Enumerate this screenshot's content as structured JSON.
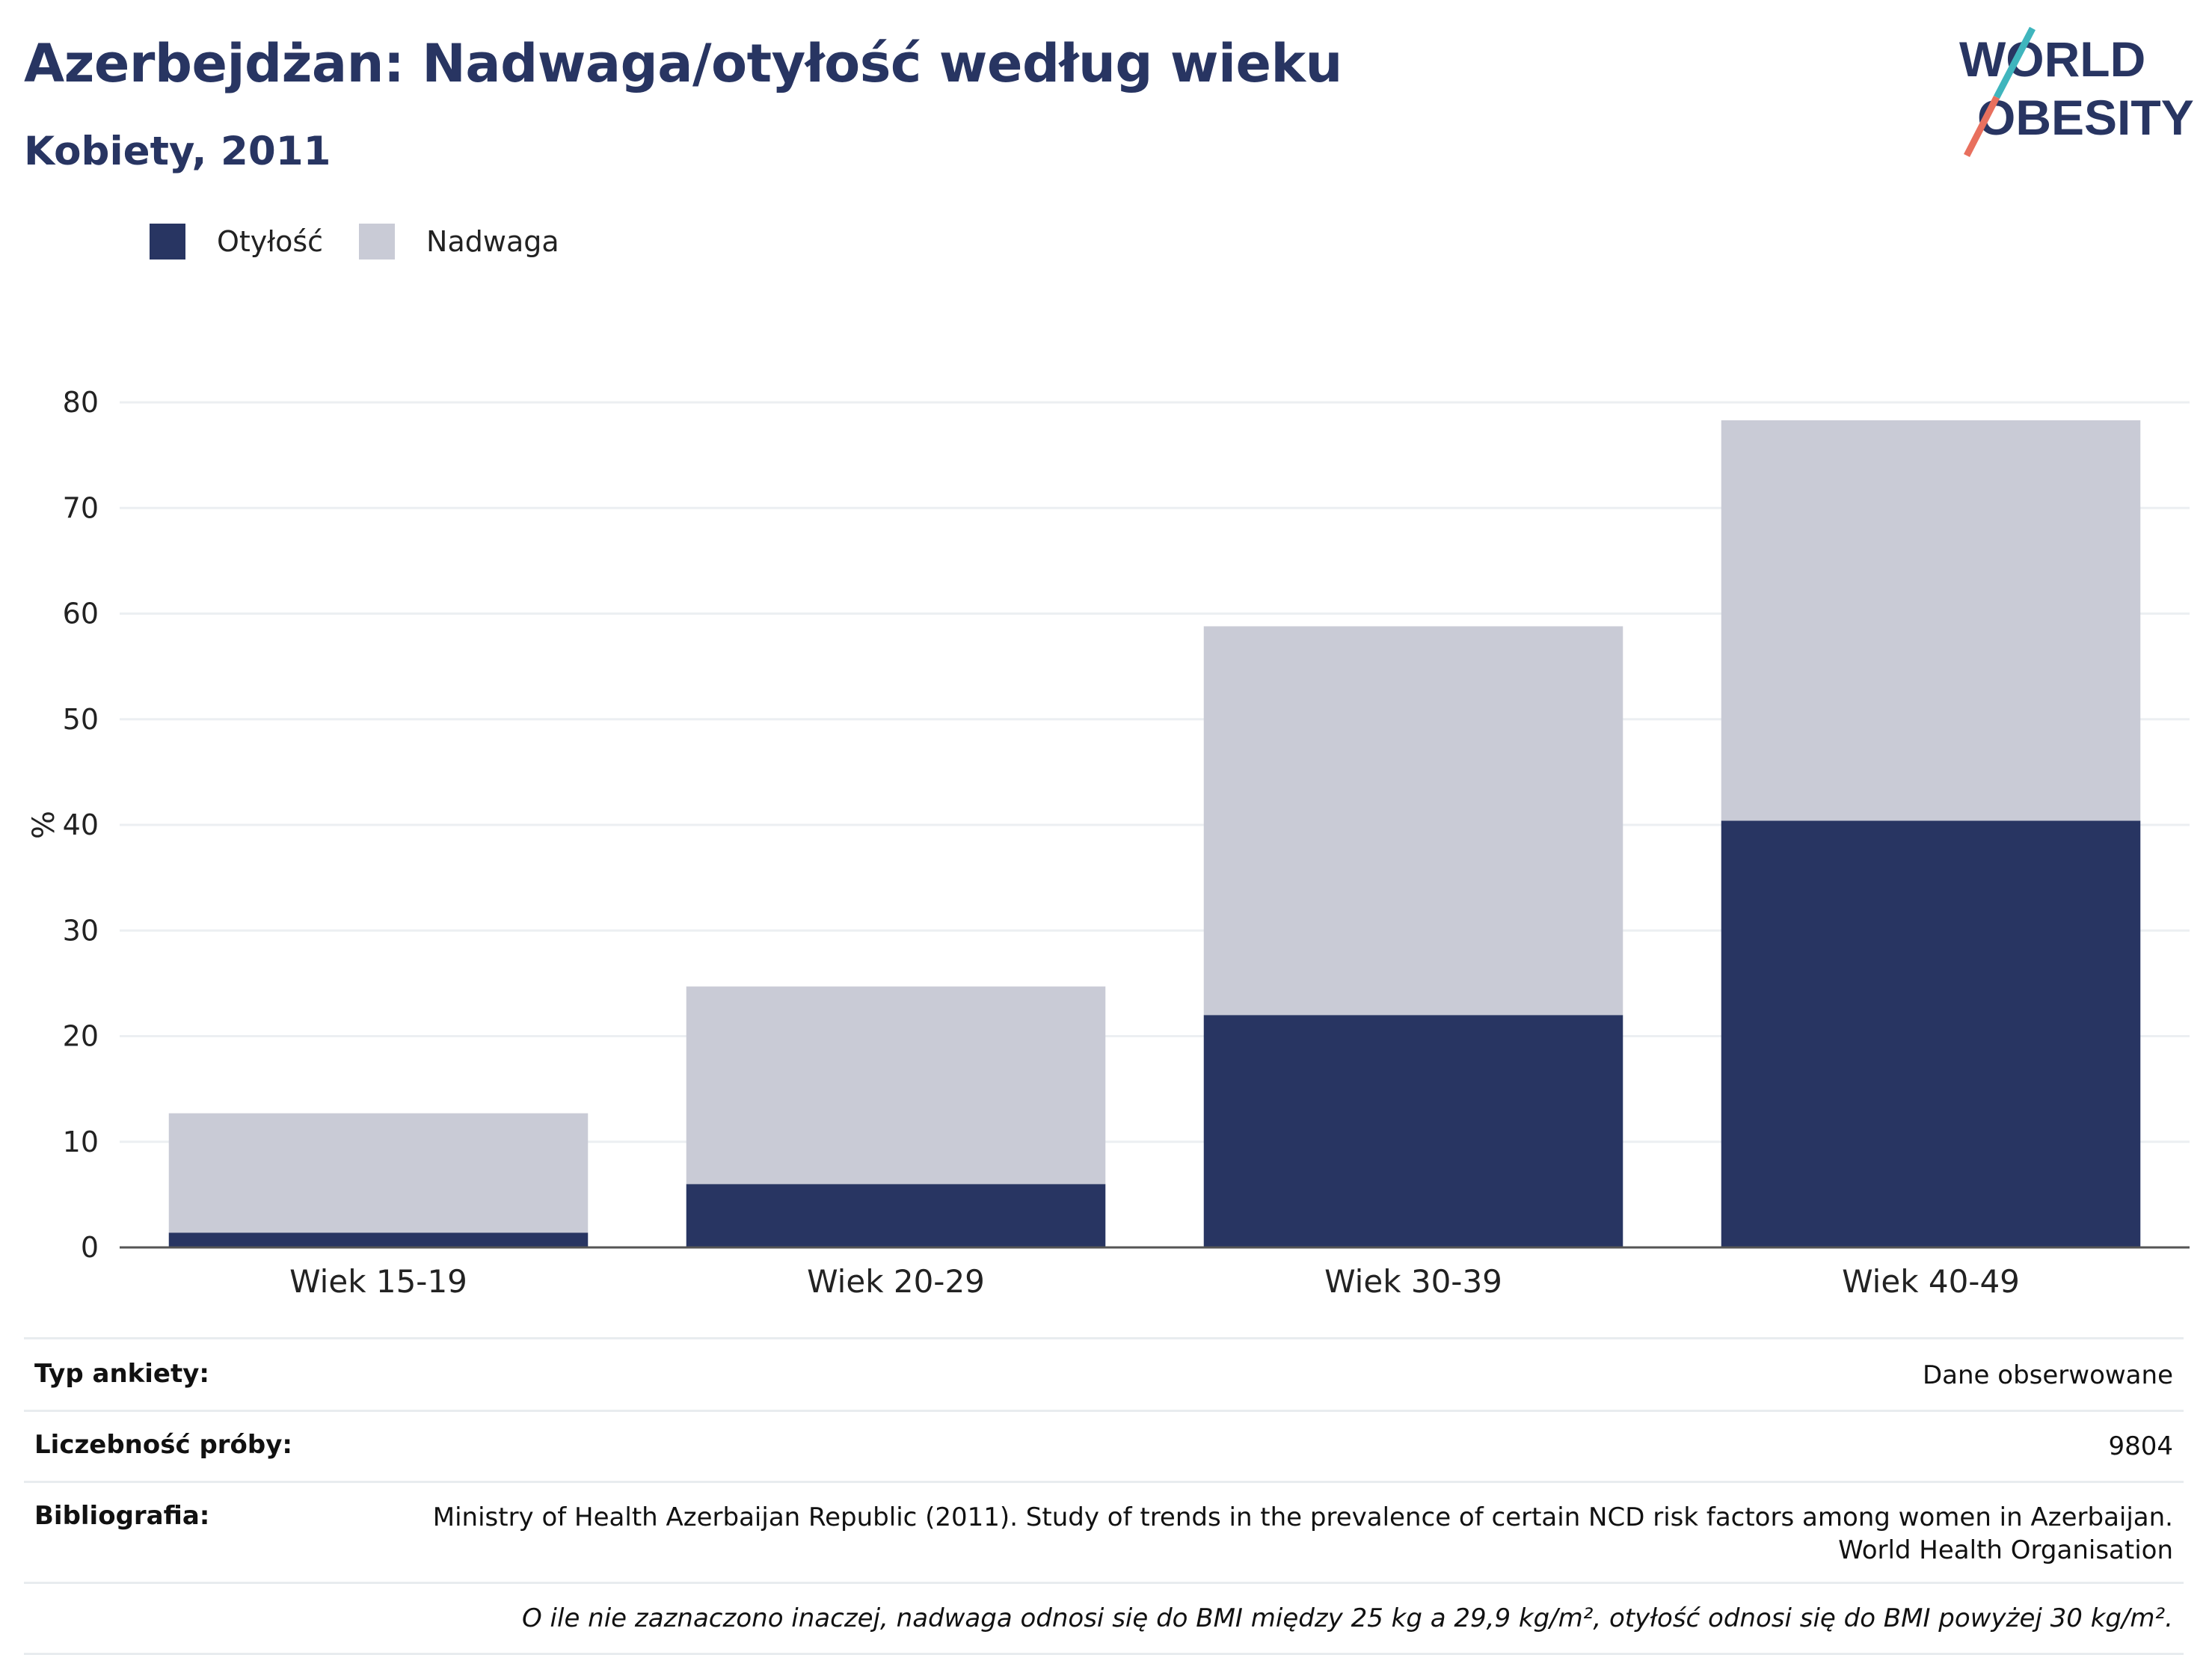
{
  "header": {
    "title": "Azerbejdżan: Nadwaga/otyłość według wieku",
    "subtitle": "Kobiety, 2011"
  },
  "logo": {
    "line1": "WORLD",
    "line2": "OBESITY",
    "colors": {
      "text": "#283562",
      "slash_top": "#3fb5bd",
      "slash_bottom": "#e8705e"
    }
  },
  "legend": [
    {
      "label": "Otyłość",
      "color": "#283562"
    },
    {
      "label": "Nadwaga",
      "color": "#c9cbd6"
    }
  ],
  "chart_data": {
    "type": "bar",
    "stacked": true,
    "categories": [
      "Wiek 15-19",
      "Wiek 20-29",
      "Wiek 30-39",
      "Wiek 40-49"
    ],
    "series": [
      {
        "name": "Otyłość",
        "values": [
          1.4,
          6.0,
          22.0,
          40.4
        ],
        "color": "#283562"
      },
      {
        "name": "Nadwaga",
        "values": [
          11.3,
          18.7,
          36.8,
          37.9
        ],
        "color": "#c9cbd6"
      }
    ],
    "ylabel": "%",
    "ylim": [
      0,
      80
    ],
    "yticks": [
      0,
      10,
      20,
      30,
      40,
      50,
      60,
      70,
      80
    ],
    "grid": true,
    "legend_position": "top-left"
  },
  "info": {
    "survey_type_label": "Typ ankiety:",
    "survey_type_value": "Dane obserwowane",
    "sample_size_label": "Liczebność próby:",
    "sample_size_value": "9804",
    "bibliography_label": "Bibliografia:",
    "bibliography_line1": "Ministry of Health Azerbaijan Republic (2011). Study of trends in the prevalence of certain NCD risk factors among women in Azerbaijan.",
    "bibliography_line2": "World Health Organisation",
    "note": "O ile nie zaznaczono inaczej, nadwaga odnosi się do BMI między 25 kg a 29,9 kg/m², otyłość odnosi się do BMI powyżej 30 kg/m²."
  }
}
